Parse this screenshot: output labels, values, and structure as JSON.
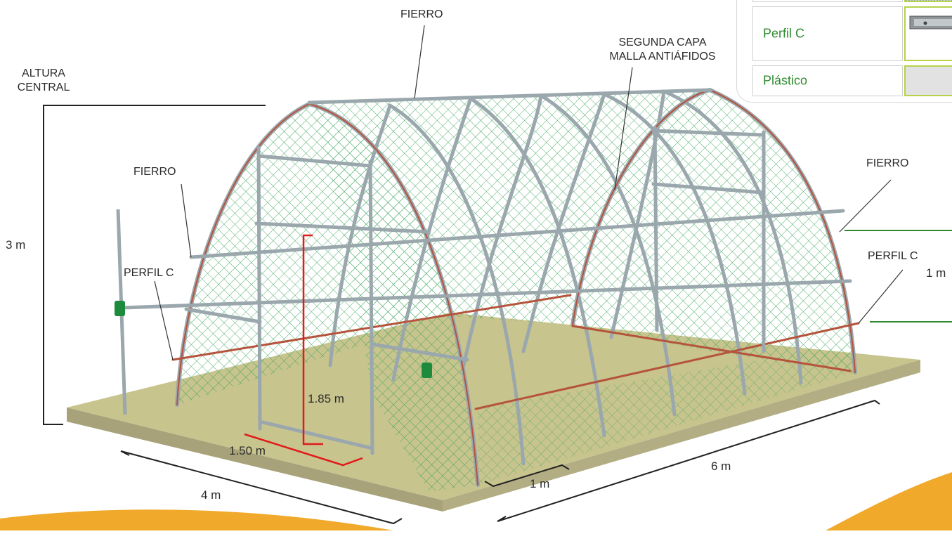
{
  "labels": {
    "fierro_top": "FIERRO",
    "segunda_capa": "SEGUNDA CAPA",
    "malla": "MALLA ANTIÁFIDOS",
    "altura_1": "ALTURA",
    "altura_2": "CENTRAL",
    "fierro_left": "FIERRO",
    "perfil_left": "PERFIL C",
    "fierro_right": "FIERRO",
    "perfil_right": "PERFIL C"
  },
  "dimensions": {
    "height": "3 m",
    "door_height": "1.85 m",
    "door_width": "1.50 m",
    "width": "4 m",
    "length": "6 m",
    "spacing_front": "1 m",
    "spacing_right": "1 m"
  },
  "legend": {
    "items": [
      {
        "label": "Perfil C"
      },
      {
        "label": "Plástico"
      }
    ]
  },
  "colors": {
    "ground_top": "#c8c48e",
    "ground_side": "#a8a27a",
    "mesh": "#3aa35a",
    "pipe": "#9aa7ad",
    "profile_c": "#b5533c",
    "dimension_red": "#e01b1b",
    "accent": "#2f8a2f",
    "orange": "#f0a92b"
  }
}
